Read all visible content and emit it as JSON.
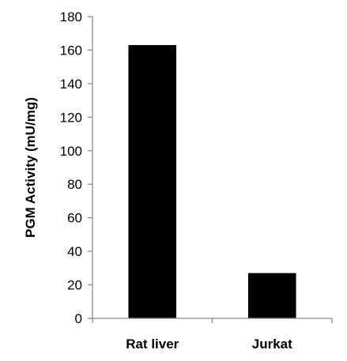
{
  "chart_data": {
    "type": "bar",
    "categories": [
      "Rat liver",
      "Jurkat"
    ],
    "values": [
      163,
      27
    ],
    "title": "",
    "xlabel": "",
    "ylabel": "PGM Activity (mU/mg)",
    "ylim": [
      0,
      180
    ],
    "yticks": [
      0,
      20,
      40,
      60,
      80,
      100,
      120,
      140,
      160,
      180
    ],
    "bar_color": "#000000",
    "grid": false,
    "legend": "none"
  }
}
